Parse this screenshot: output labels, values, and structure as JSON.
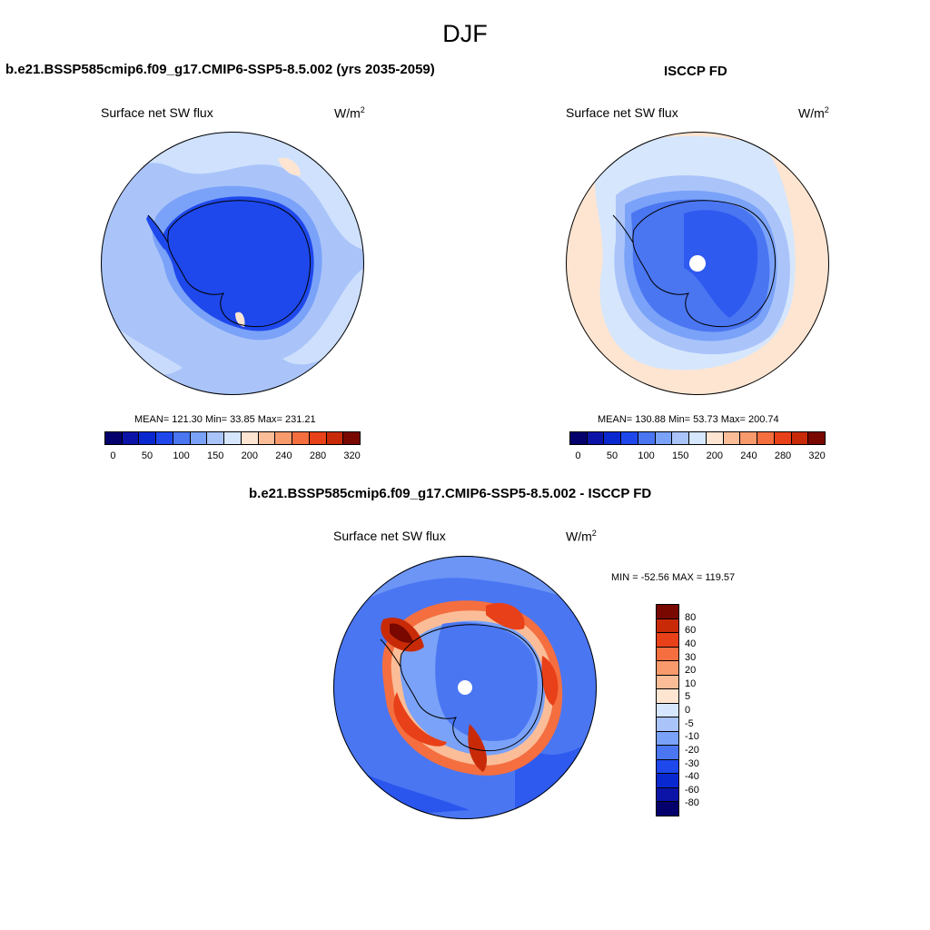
{
  "title": "DJF",
  "palette": {
    "abs": [
      "#04006c",
      "#0c14a8",
      "#0a28d0",
      "#1e48ec",
      "#4a76f2",
      "#7aa2f8",
      "#aac4fa",
      "#d6e6fc",
      "#fde5d2",
      "#fbbd98",
      "#f99a6c",
      "#f46e40",
      "#e84018",
      "#c82a08",
      "#780800"
    ],
    "diff": [
      "#780800",
      "#c82a08",
      "#e84018",
      "#f46e40",
      "#f99a6c",
      "#fbbd98",
      "#fde5d2",
      "#d6e6fc",
      "#aac4fa",
      "#7aa2f8",
      "#4a76f2",
      "#1e48ec",
      "#0a28d0",
      "#0c14a8",
      "#04006c"
    ]
  },
  "panels": {
    "model": {
      "title": "b.e21.BSSP585cmip6.f09_g17.CMIP6-SSP5-8.5.002 (yrs 2035-2059)",
      "variable": "Surface net SW flux",
      "units": "W/m",
      "units_exp": "2",
      "stats": "MEAN= 121.30  Min=  33.85  Max= 231.21"
    },
    "obs": {
      "title": "ISCCP FD",
      "variable": "Surface net SW flux",
      "units": "W/m",
      "units_exp": "2",
      "stats": "MEAN= 130.88  Min=  53.73  Max= 200.74"
    },
    "diff": {
      "title": "b.e21.BSSP585cmip6.f09_g17.CMIP6-SSP5-8.5.002 - ISCCP FD",
      "variable": "Surface net SW flux",
      "units": "W/m",
      "units_exp": "2",
      "minmax": "MIN = -52.56 MAX = 119.57"
    }
  },
  "colorbar_abs_ticks": [
    "0",
    "50",
    "100",
    "150",
    "200",
    "240",
    "280",
    "320"
  ],
  "colorbar_diff_ticks": [
    "80",
    "60",
    "40",
    "30",
    "20",
    "10",
    "5",
    "0",
    "-5",
    "-10",
    "-20",
    "-30",
    "-40",
    "-60",
    "-80"
  ]
}
